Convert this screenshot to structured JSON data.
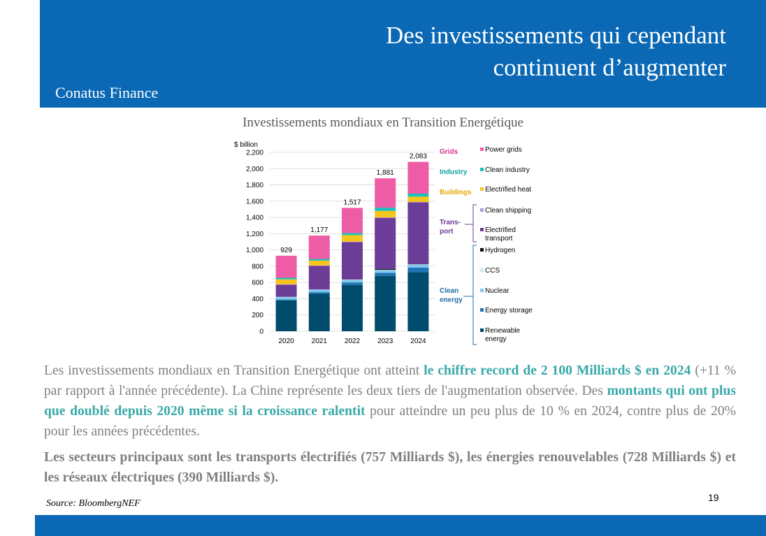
{
  "header": {
    "title_line1": "Des investissements qui cependant",
    "title_line2": "continuent d’augmenter",
    "brand": "Conatus Finance",
    "background": "#0a68b4"
  },
  "figure_title": "Investissements mondiaux en Transition Energétique",
  "chart_data": {
    "type": "bar",
    "stacked": true,
    "ylabel": "$ billion",
    "ylim": [
      0,
      2200
    ],
    "yticks": [
      0,
      200,
      400,
      600,
      800,
      1000,
      1200,
      1400,
      1600,
      1800,
      2000,
      2200
    ],
    "categories": [
      "2020",
      "2021",
      "2022",
      "2023",
      "2024"
    ],
    "totals": [
      929,
      1177,
      1517,
      1881,
      2083
    ],
    "total_labels": [
      "929",
      "1,177",
      "1,517",
      "1,881",
      "2,083"
    ],
    "grid": true,
    "legend_position": "right",
    "series": [
      {
        "name": "Renewable energy",
        "group": "Clean energy",
        "color": "#004c6d",
        "values": [
          380,
          460,
          570,
          680,
          728
        ]
      },
      {
        "name": "Energy storage",
        "group": "Clean energy",
        "color": "#1f75b3",
        "values": [
          10,
          20,
          30,
          40,
          55
        ]
      },
      {
        "name": "Nuclear",
        "group": "Clean energy",
        "color": "#7ec8ef",
        "values": [
          30,
          30,
          30,
          30,
          35
        ]
      },
      {
        "name": "CCS",
        "group": "Clean energy",
        "color": "#d9eaf5",
        "values": [
          3,
          3,
          5,
          5,
          5
        ]
      },
      {
        "name": "Hydrogen",
        "group": "Clean energy",
        "color": "#111111",
        "values": [
          0,
          1,
          2,
          10,
          5
        ]
      },
      {
        "name": "Electrified transport",
        "group": "Trans- port",
        "color": "#6b3d96",
        "values": [
          150,
          290,
          460,
          630,
          757
        ]
      },
      {
        "name": "Clean shipping",
        "group": "Trans- port",
        "color": "#b79be0",
        "values": [
          5,
          5,
          5,
          5,
          5
        ]
      },
      {
        "name": "Electrified heat",
        "group": "Buildings",
        "color": "#f7c51b",
        "values": [
          60,
          60,
          80,
          80,
          65
        ]
      },
      {
        "name": "Clean industry",
        "group": "Industry",
        "color": "#1cc0bb",
        "values": [
          20,
          20,
          25,
          40,
          38
        ]
      },
      {
        "name": "Power grids",
        "group": "Grids",
        "color": "#ee5ca6",
        "values": [
          271,
          288,
          310,
          361,
          390
        ]
      }
    ],
    "groups": [
      {
        "name": "Grids",
        "color": "#d6338a"
      },
      {
        "name": "Industry",
        "color": "#12a39e"
      },
      {
        "name": "Buildings",
        "color": "#e6a700"
      },
      {
        "name": "Trans-",
        "name2": "port",
        "color": "#6b3d96"
      },
      {
        "name": "Clean",
        "name2": "energy",
        "color": "#1f6ea8"
      }
    ],
    "legend": [
      {
        "label": "Power grids",
        "color": "#ee5ca6"
      },
      {
        "label": "Clean industry",
        "color": "#1cc0bb"
      },
      {
        "label": "Electrified heat",
        "color": "#f7c51b"
      },
      {
        "label": "Clean shipping",
        "color": "#b79be0"
      },
      {
        "label": "Electrified",
        "label2": "transport",
        "color": "#6b3d96"
      },
      {
        "label": "Hydrogen",
        "color": "#111111"
      },
      {
        "label": "CCS",
        "color": "#d9eaf5"
      },
      {
        "label": "Nuclear",
        "color": "#7ec8ef"
      },
      {
        "label": "Energy storage",
        "color": "#1f75b3"
      },
      {
        "label": "Renewable",
        "label2": "energy",
        "color": "#004c6d"
      }
    ]
  },
  "paragraph1": {
    "p1": "Les investissements mondiaux en Transition Energétique ont atteint ",
    "h1": "le chiffre record de 2 100 Milliards $ en 2024",
    "p2": " (+11 % par rapport à l'année précédente). La Chine représente les deux tiers de l'augmentation observée. Des ",
    "h2": "montants qui ont plus que doublé depuis 2020 même si la croissance ralentit",
    "p3": " pour atteindre un peu plus de 10 % en 2024, contre plus de 20% pour les années précédentes."
  },
  "paragraph2": "Les secteurs principaux sont les transports électrifiés (757 Milliards $), les énergies renouvelables (728 Milliards $) et les réseaux électriques (390 Milliards $).",
  "source": "Source: BloombergNEF",
  "page_number": "19",
  "colors": {
    "highlight": "#3aa9a9",
    "body_text": "#7f7f7f"
  }
}
